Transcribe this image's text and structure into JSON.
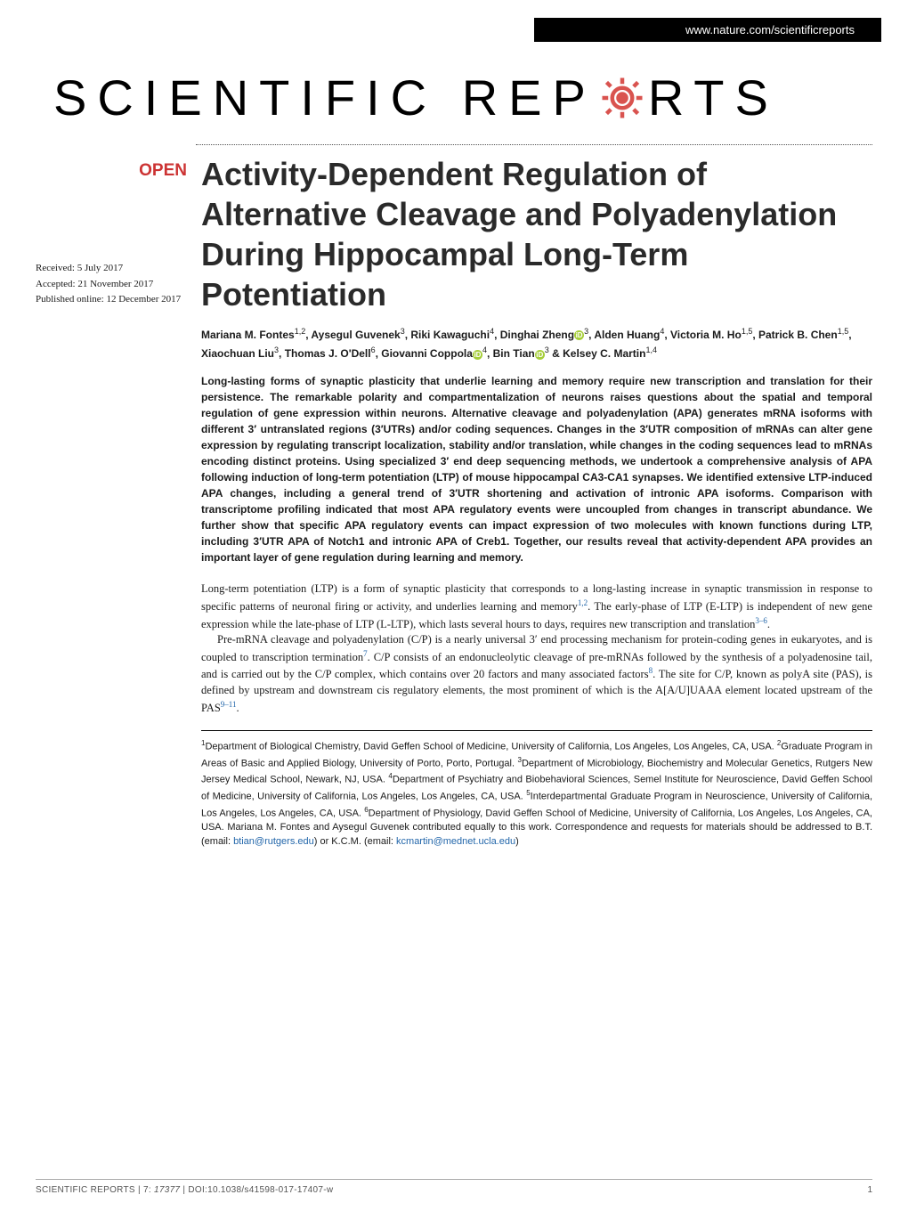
{
  "header": {
    "url": "www.nature.com/scientificreports"
  },
  "journal": {
    "name_part1": "SCIENTIFIC",
    "name_part2": "REP",
    "name_part3": "RTS",
    "logo_color": "#d9534f"
  },
  "badge": {
    "open": "OPEN"
  },
  "dates": {
    "received": "Received: 5 July 2017",
    "accepted": "Accepted: 21 November 2017",
    "published": "Published online: 12 December 2017"
  },
  "title": "Activity-Dependent Regulation of Alternative Cleavage and Polyadenylation During Hippocampal Long-Term Potentiation",
  "authors_html": "Mariana M. Fontes<sup>1,2</sup>, Aysegul Guvenek<sup>3</sup>, Riki Kawaguchi<sup>4</sup>, Dinghai Zheng<span class='orcid'>iD</span><sup>3</sup>, Alden Huang<sup>4</sup>, Victoria M. Ho<sup>1,5</sup>, Patrick B. Chen<sup>1,5</sup>, Xiaochuan Liu<sup>3</sup>, Thomas J. O'Dell<sup>6</sup>, Giovanni Coppola<span class='orcid'>iD</span><sup>4</sup>, Bin Tian<span class='orcid'>iD</span><sup>3</sup> & Kelsey C. Martin<sup>1,4</sup>",
  "abstract": "Long-lasting forms of synaptic plasticity that underlie learning and memory require new transcription and translation for their persistence. The remarkable polarity and compartmentalization of neurons raises questions about the spatial and temporal regulation of gene expression within neurons. Alternative cleavage and polyadenylation (APA) generates mRNA isoforms with different 3′ untranslated regions (3′UTRs) and/or coding sequences. Changes in the 3′UTR composition of mRNAs can alter gene expression by regulating transcript localization, stability and/or translation, while changes in the coding sequences lead to mRNAs encoding distinct proteins. Using specialized 3′ end deep sequencing methods, we undertook a comprehensive analysis of APA following induction of long-term potentiation (LTP) of mouse hippocampal CA3-CA1 synapses. We identified extensive LTP-induced APA changes, including a general trend of 3′UTR shortening and activation of intronic APA isoforms. Comparison with transcriptome profiling indicated that most APA regulatory events were uncoupled from changes in transcript abundance. We further show that specific APA regulatory events can impact expression of two molecules with known functions during LTP, including 3′UTR APA of Notch1 and intronic APA of Creb1. Together, our results reveal that activity-dependent APA provides an important layer of gene regulation during learning and memory.",
  "body": {
    "p1_pre": "Long-term potentiation (LTP) is a form of synaptic plasticity that corresponds to a long-lasting increase in synaptic transmission in response to specific patterns of neuronal firing or activity, and underlies learning and memory",
    "p1_ref1": "1,2",
    "p1_mid": ". The early-phase of LTP (E-LTP) is independent of new gene expression while the late-phase of LTP (L-LTP), which lasts several hours to days, requires new transcription and translation",
    "p1_ref2": "3–6",
    "p1_end": ".",
    "p2_pre": "Pre-mRNA cleavage and polyadenylation (C/P) is a nearly universal 3′ end processing mechanism for protein-coding genes in eukaryotes, and is coupled to transcription termination",
    "p2_ref1": "7",
    "p2_mid1": ". C/P consists of an endonucleolytic cleavage of pre-mRNAs followed by the synthesis of a polyadenosine tail, and is carried out by the C/P complex, which contains over 20 factors and many associated factors",
    "p2_ref2": "8",
    "p2_mid2": ". The site for C/P, known as polyA site (PAS), is defined by upstream and downstream cis regulatory elements, the most prominent of which is the A[A/U]UAAA element located upstream of the PAS",
    "p2_ref3": "9–11",
    "p2_end": "."
  },
  "affiliations_html": "<sup>1</sup>Department of Biological Chemistry, David Geffen School of Medicine, University of California, Los Angeles, Los Angeles, CA, USA. <sup>2</sup>Graduate Program in Areas of Basic and Applied Biology, University of Porto, Porto, Portugal. <sup>3</sup>Department of Microbiology, Biochemistry and Molecular Genetics, Rutgers New Jersey Medical School, Newark, NJ, USA. <sup>4</sup>Department of Psychiatry and Biobehavioral Sciences, Semel Institute for Neuroscience, David Geffen School of Medicine, University of California, Los Angeles, Los Angeles, CA, USA. <sup>5</sup>Interdepartmental Graduate Program in Neuroscience, University of California, Los Angeles, Los Angeles, CA, USA. <sup>6</sup>Department of Physiology, David Geffen School of Medicine, University of California, Los Angeles, Los Angeles, CA, USA. Mariana M. Fontes and Aysegul Guvenek contributed equally to this work. Correspondence and requests for materials should be addressed to B.T. (email: <span class='email-link'>btian@rutgers.edu</span>) or K.C.M. (email: <span class='email-link'>kcmartin@mednet.ucla.edu</span>)",
  "footer": {
    "citation_pre": "SCIENTIFIC REPORTS",
    "citation_mid": " | 7: ",
    "citation_article": "17377",
    "citation_doi": " | DOI:10.1038/s41598-017-17407-w",
    "page": "1"
  },
  "colors": {
    "open_badge": "#cc3333",
    "link": "#2266aa",
    "orcid": "#a6ce39",
    "background": "#ffffff",
    "text": "#1a1a1a"
  },
  "typography": {
    "title_fontsize": 36,
    "body_fontsize": 12.5,
    "abstract_fontsize": 12,
    "authors_fontsize": 12,
    "affiliations_fontsize": 11,
    "footer_fontsize": 10
  }
}
